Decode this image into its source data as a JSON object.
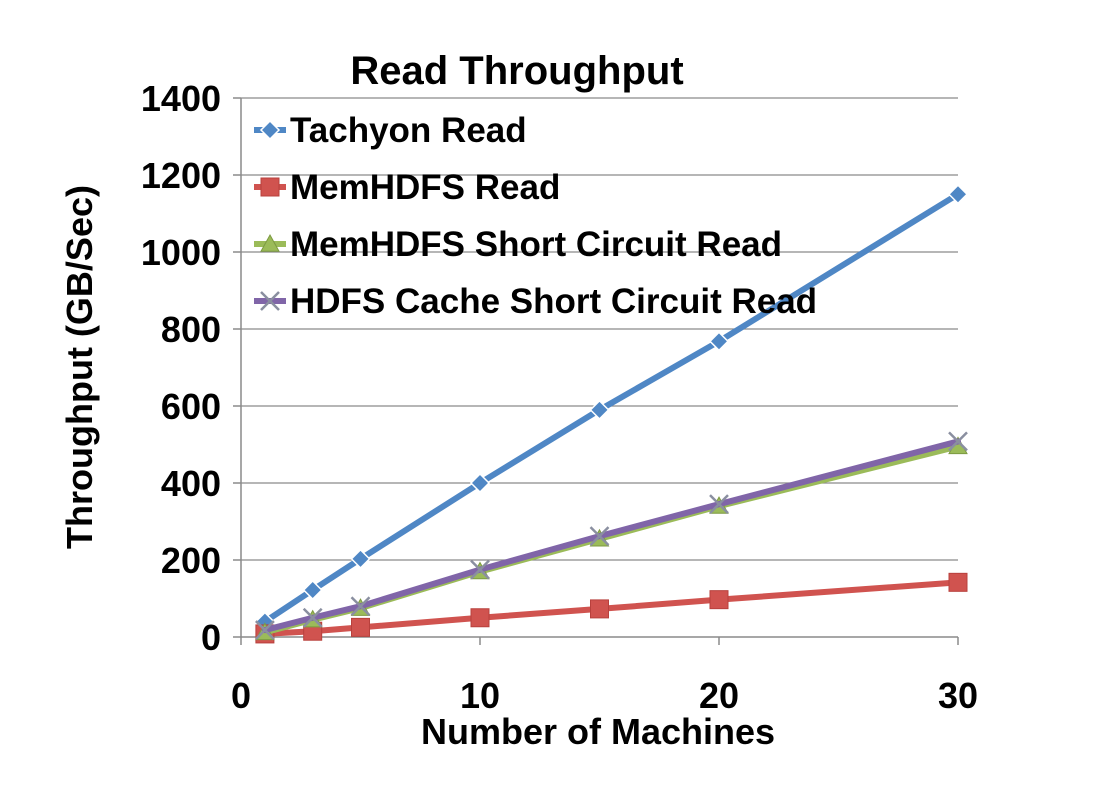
{
  "chart_data": {
    "type": "line",
    "title": "Read Throughput",
    "xlabel": "Number of Machines",
    "ylabel": "Throughput (GB/Sec)",
    "xlim": [
      0,
      30
    ],
    "ylim": [
      0,
      1400
    ],
    "x_ticks": [
      "0",
      "10",
      "20",
      "30"
    ],
    "y_ticks": [
      "0",
      "200",
      "400",
      "600",
      "800",
      "1000",
      "1200",
      "1400"
    ],
    "grid": "horizontal",
    "legend_position": "top-left",
    "x": [
      1,
      3,
      5,
      10,
      15,
      20,
      30
    ],
    "series": [
      {
        "name": "Tachyon Read",
        "color": "#4f87c5",
        "marker": "diamond",
        "values": [
          40,
          122,
          203,
          400,
          590,
          768,
          1150
        ]
      },
      {
        "name": "MemHDFS Read",
        "color": "#d0534f",
        "marker": "square",
        "values": [
          8,
          15,
          25,
          50,
          73,
          97,
          142
        ]
      },
      {
        "name": "MemHDFS Short Circuit Read",
        "color": "#9bbb59",
        "marker": "triangle",
        "values": [
          12,
          45,
          75,
          170,
          255,
          340,
          495
        ]
      },
      {
        "name": "HDFS Cache Short Circuit Read",
        "color": "#8065a8",
        "marker": "x",
        "values": [
          18,
          50,
          80,
          175,
          262,
          345,
          508
        ]
      }
    ]
  }
}
